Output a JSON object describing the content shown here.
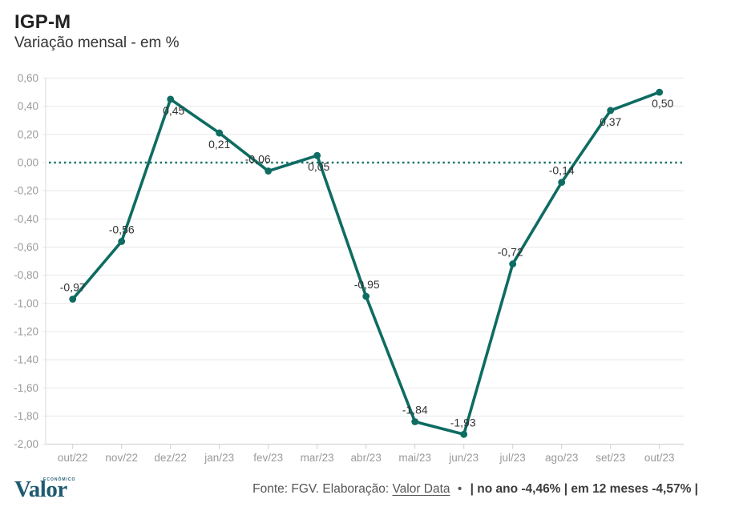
{
  "header": {
    "title": "IGP-M",
    "subtitle": "Variação mensal - em %"
  },
  "chart_data": {
    "type": "line",
    "title": "IGP-M",
    "subtitle": "Variação mensal - em %",
    "categories": [
      "out/22",
      "nov/22",
      "dez/22",
      "jan/23",
      "fev/23",
      "mar/23",
      "abr/23",
      "mai/23",
      "jun/23",
      "jul/23",
      "ago/23",
      "set/23",
      "out/23"
    ],
    "values": [
      -0.97,
      -0.56,
      0.45,
      0.21,
      -0.06,
      0.05,
      -0.95,
      -1.84,
      -1.93,
      -0.72,
      -0.14,
      0.37,
      0.5
    ],
    "labels": [
      "-0,97",
      "-0,56",
      "0,45",
      "0,21",
      "-0,06",
      "0,05",
      "-0,95",
      "-1,84",
      "-1,93",
      "-0,72",
      "-0,14",
      "0,37",
      "0,50"
    ],
    "y_ticks": [
      "0,60",
      "0,40",
      "0,20",
      "0,00",
      "-0,20",
      "-0,40",
      "-0,60",
      "-0,80",
      "-1,00",
      "-1,20",
      "-1,40",
      "-1,60",
      "-1,80",
      "-2,00"
    ],
    "ylim": [
      -2.0,
      0.6
    ],
    "grid": true,
    "legend": "none",
    "zero_line": "dotted",
    "line_color": "#0E6C62",
    "axis_text_color": "#9a9a9a",
    "label_text_color": "#333333",
    "label_placement": [
      {
        "pos": "above",
        "dx": 0
      },
      {
        "pos": "above",
        "dx": 0
      },
      {
        "pos": "below",
        "dx": 4
      },
      {
        "pos": "below",
        "dx": 0
      },
      {
        "pos": "above",
        "dx": -13
      },
      {
        "pos": "below",
        "dx": 2
      },
      {
        "pos": "above",
        "dx": 1
      },
      {
        "pos": "above",
        "dx": 0
      },
      {
        "pos": "above",
        "dx": -1
      },
      {
        "pos": "above",
        "dx": -3
      },
      {
        "pos": "above",
        "dx": 0
      },
      {
        "pos": "below",
        "dx": 0
      },
      {
        "pos": "below",
        "dx": 4
      }
    ]
  },
  "footer": {
    "source_prefix": "Fonte: FGV. Elaboração:",
    "source_link": "Valor Data",
    "bullet": "•",
    "stats_bold": "| no ano -4,46% | em 12 meses -4,57% |"
  },
  "logo": {
    "name": "Valor",
    "sub": "ECONÔMICO"
  },
  "colors": {
    "line": "#0E6C62",
    "logo": "#1e5b70",
    "grid": "#e8e8e8"
  }
}
